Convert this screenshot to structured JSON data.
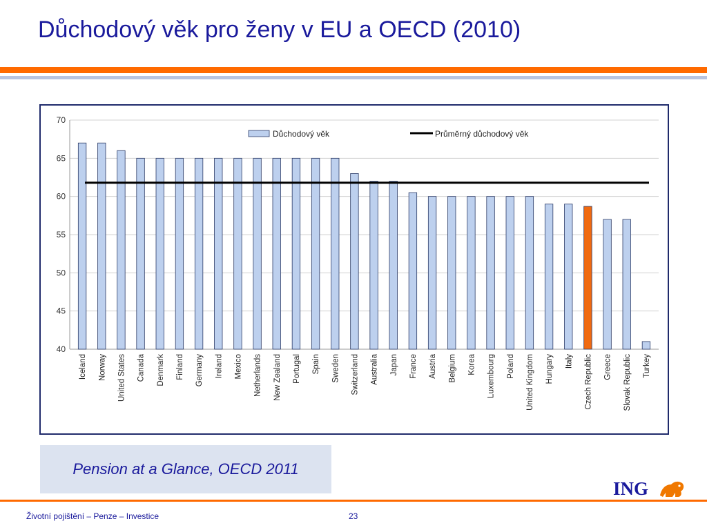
{
  "slide": {
    "title": "Důchodový věk pro ženy v EU a OECD (2010)",
    "source": "Pension at a Glance, OECD 2011",
    "footer_text": "Životní pojištění – Penze – Investice",
    "page_number": "23",
    "logo_text": "ING"
  },
  "colors": {
    "title": "#1a1a9c",
    "orange": "#ff6a00",
    "bar_default": "#bdd0ee",
    "bar_highlight": "#f06a10",
    "bar_stroke": "#2b3a66",
    "average_line": "#000000"
  },
  "chart_data": {
    "type": "bar",
    "categories": [
      "Iceland",
      "Norway",
      "United States",
      "Canada",
      "Denmark",
      "Finland",
      "Germany",
      "Ireland",
      "Mexico",
      "Netherlands",
      "New Zealand",
      "Portugal",
      "Spain",
      "Sweden",
      "Switzerland",
      "Australia",
      "Japan",
      "France",
      "Austria",
      "Belgium",
      "Korea",
      "Luxembourg",
      "Poland",
      "United Kingdom",
      "Hungary",
      "Italy",
      "Czech Republic",
      "Greece",
      "Slovak Republic",
      "Turkey"
    ],
    "series": [
      {
        "name": "Důchodový věk",
        "values": [
          67,
          67,
          66,
          65,
          65,
          65,
          65,
          65,
          65,
          65,
          65,
          65,
          65,
          65,
          63,
          62,
          62,
          60.5,
          60,
          60,
          60,
          60,
          60,
          60,
          59,
          59,
          58.7,
          57,
          57,
          41
        ]
      }
    ],
    "highlight_category": "Czech Republic",
    "average": {
      "name": "Průměrný důchodový věk",
      "value": 61.8
    },
    "ylim": [
      40,
      70
    ],
    "yticks": [
      40,
      45,
      50,
      55,
      60,
      65,
      70
    ],
    "grid": true,
    "legend": "top"
  }
}
